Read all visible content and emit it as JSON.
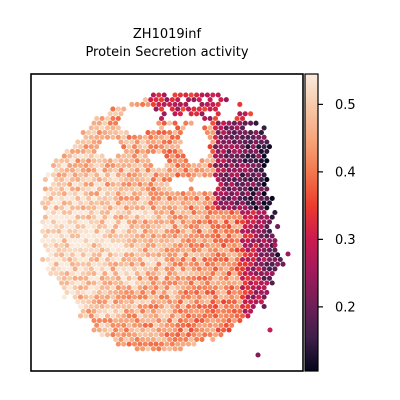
{
  "chart_data": {
    "type": "scatter",
    "title_line1": "ZH1019inf",
    "title_line2": "Protein Secretion activity",
    "xlabel": "",
    "ylabel": "",
    "grid": false,
    "colormap": "rocket",
    "colorbar": {
      "range": [
        0.105,
        0.545
      ],
      "ticks": [
        0.2,
        0.3,
        0.4,
        0.5
      ],
      "tick_labels": [
        "0.2",
        "0.3",
        "0.4",
        "0.5"
      ]
    },
    "colormap_stops": [
      "#03051a",
      "#3e1f4a",
      "#701f57",
      "#a11a5b",
      "#cb1b4f",
      "#ec3c2d",
      "#f3764c",
      "#f6a47b",
      "#f6c8a8",
      "#faebdd"
    ],
    "points_note_values": "values in colorbar units, spots of spatial transcriptomics tissue section"
  }
}
